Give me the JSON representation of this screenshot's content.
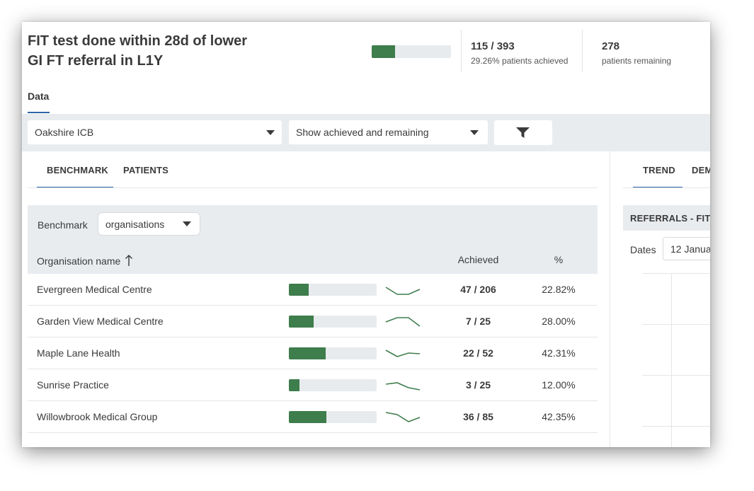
{
  "header": {
    "title": "FIT test done within 28d of lower GI FT referral in L1Y",
    "progress_fraction": 0.2926,
    "achieved": "115 / 393",
    "achieved_label": "29.26% patients achieved",
    "remaining": "278",
    "remaining_label": "patients remaining"
  },
  "tabs": {
    "data": "Data"
  },
  "filters": {
    "organisation": "Oakshire ICB",
    "show": "Show achieved and remaining",
    "filter_icon": "filter-icon"
  },
  "left_tabs": {
    "benchmark": "BENCHMARK",
    "patients": "PATIENTS"
  },
  "benchmark": {
    "label": "Benchmark",
    "select_value": "organisations",
    "col_name": "Organisation name",
    "col_achieved": "Achieved",
    "col_pct": "%",
    "rows": [
      {
        "name": "Evergreen Medical Centre",
        "achieved": "47 / 206",
        "pct": "22.82%",
        "fraction": 0.2282,
        "trend": [
          0.35,
          0.85,
          0.85,
          0.5
        ]
      },
      {
        "name": "Garden View Medical Centre",
        "achieved": "7 / 25",
        "pct": "28.00%",
        "fraction": 0.28,
        "trend": [
          0.55,
          0.25,
          0.25,
          0.85
        ]
      },
      {
        "name": "Maple Lane Health",
        "achieved": "22 / 52",
        "pct": "42.31%",
        "fraction": 0.4231,
        "trend": [
          0.3,
          0.75,
          0.5,
          0.55
        ]
      },
      {
        "name": "Sunrise Practice",
        "achieved": "3 / 25",
        "pct": "12.00%",
        "fraction": 0.12,
        "trend": [
          0.45,
          0.35,
          0.7,
          0.85
        ]
      },
      {
        "name": "Willowbrook Medical Group",
        "achieved": "36 / 85",
        "pct": "42.35%",
        "fraction": 0.4235,
        "trend": [
          0.2,
          0.35,
          0.85,
          0.55
        ]
      }
    ]
  },
  "right_tabs": {
    "trend": "TREND",
    "dem": "DEM"
  },
  "right_panel": {
    "section_title": "REFERRALS - FIT",
    "dates_label": "Dates",
    "dates_value": "12 Janua"
  }
}
